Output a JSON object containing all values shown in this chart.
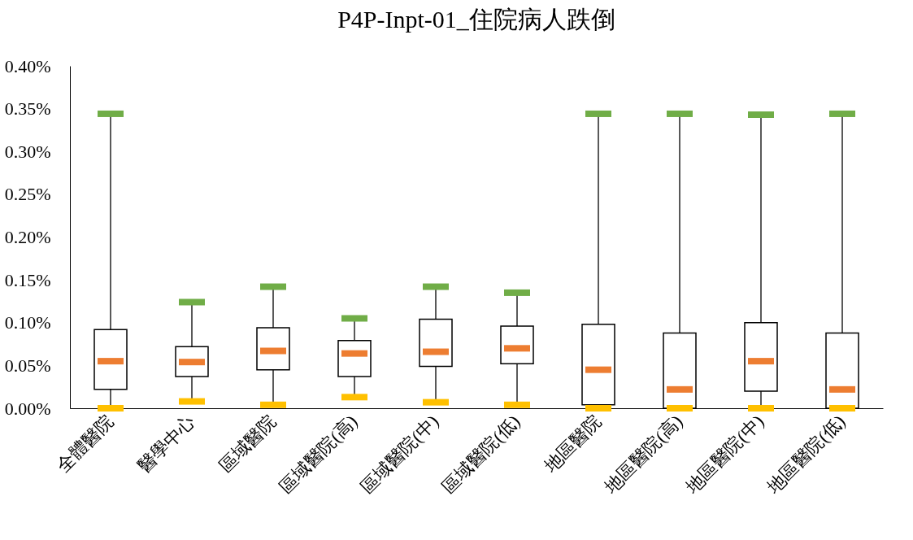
{
  "chart_data": {
    "type": "box",
    "title": "P4P-Inpt-01_住院病人跌倒",
    "categories": [
      "全體醫院",
      "醫學中心",
      "區域醫院",
      "區域醫院(高)",
      "區域醫院(中)",
      "區域醫院(低)",
      "地區醫院",
      "地區醫院(高)",
      "地區醫院(中)",
      "地區醫院(低)"
    ],
    "boxes": [
      {
        "low": 0.0,
        "q1": 0.022,
        "median": 0.055,
        "q3": 0.092,
        "high": 0.344
      },
      {
        "low": 0.008,
        "q1": 0.037,
        "median": 0.054,
        "q3": 0.072,
        "high": 0.124
      },
      {
        "low": 0.004,
        "q1": 0.045,
        "median": 0.067,
        "q3": 0.094,
        "high": 0.142
      },
      {
        "low": 0.013,
        "q1": 0.037,
        "median": 0.064,
        "q3": 0.079,
        "high": 0.105
      },
      {
        "low": 0.007,
        "q1": 0.049,
        "median": 0.066,
        "q3": 0.104,
        "high": 0.142
      },
      {
        "low": 0.004,
        "q1": 0.052,
        "median": 0.07,
        "q3": 0.096,
        "high": 0.135
      },
      {
        "low": 0.0,
        "q1": 0.004,
        "median": 0.045,
        "q3": 0.098,
        "high": 0.344
      },
      {
        "low": 0.0,
        "q1": 0.0,
        "median": 0.022,
        "q3": 0.088,
        "high": 0.344
      },
      {
        "low": 0.0,
        "q1": 0.02,
        "median": 0.055,
        "q3": 0.1,
        "high": 0.343
      },
      {
        "low": 0.0,
        "q1": 0.0,
        "median": 0.022,
        "q3": 0.088,
        "high": 0.344
      }
    ],
    "ylim": [
      0,
      0.4
    ],
    "yticks": [
      {
        "value": 0,
        "label": "0.00%"
      },
      {
        "value": 0.05,
        "label": "0.05%"
      },
      {
        "value": 0.1,
        "label": "0.10%"
      },
      {
        "value": 0.15,
        "label": "0.15%"
      },
      {
        "value": 0.2,
        "label": "0.20%"
      },
      {
        "value": 0.25,
        "label": "0.25%"
      },
      {
        "value": 0.3,
        "label": "0.30%"
      },
      {
        "value": 0.35,
        "label": "0.35%"
      },
      {
        "value": 0.4,
        "label": "0.40%"
      }
    ],
    "grid": false
  }
}
